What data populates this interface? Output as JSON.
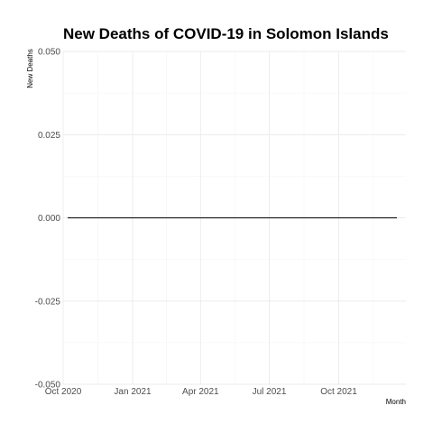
{
  "chart_data": {
    "type": "line",
    "title": "New Deaths of COVID-19 in Solomon Islands",
    "xlabel": "Month",
    "ylabel": "New Deaths",
    "x_tick_labels": [
      "Oct 2020",
      "Jan 2021",
      "Apr 2021",
      "Jul 2021",
      "Oct 2021"
    ],
    "x_tick_dates": [
      "2020-10-01",
      "2021-01-01",
      "2021-04-01",
      "2021-07-01",
      "2021-10-01"
    ],
    "xlim": [
      "2020-10-01",
      "2021-12-29"
    ],
    "y_ticks": [
      -0.05,
      -0.025,
      0,
      0.025,
      0.05
    ],
    "y_tick_labels": [
      "-0.050",
      "-0.025",
      "0.000",
      "0.025",
      "0.050"
    ],
    "ylim": [
      -0.05,
      0.05
    ],
    "grid": true,
    "series": [
      {
        "x": [
          "2020-10-07",
          "2021-12-17"
        ],
        "values": [
          0,
          0
        ],
        "color": "#000000"
      }
    ]
  }
}
